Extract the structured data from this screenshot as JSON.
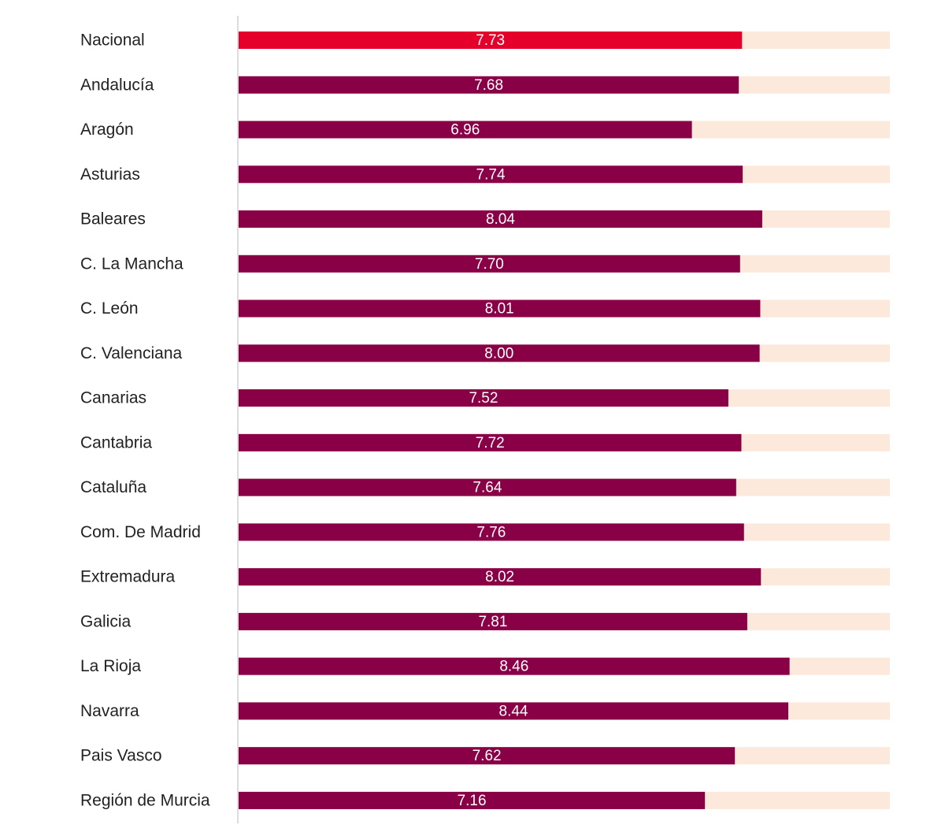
{
  "chart_data": {
    "type": "hbar",
    "categories": [
      "Nacional",
      "Andalucía",
      "Aragón",
      "Asturias",
      "Baleares",
      "C. La Mancha",
      "C. León",
      "C. Valenciana",
      "Canarias",
      "Cantabria",
      "Cataluña",
      "Com. De Madrid",
      "Extremadura",
      "Galicia",
      "La Rioja",
      "Navarra",
      "Pais Vasco",
      "Región de Murcia"
    ],
    "values": [
      7.73,
      7.68,
      6.96,
      7.74,
      8.04,
      7.7,
      8.01,
      8,
      7.52,
      7.72,
      7.64,
      7.76,
      8.02,
      7.81,
      8.46,
      8.44,
      7.62,
      7.16
    ],
    "value_labels": [
      "7.73",
      "7.68",
      "6.96",
      "7.74",
      "8.04",
      "7.70",
      "8.01",
      "8.00",
      "7.52",
      "7.72",
      "7.64",
      "7.76",
      "8.02",
      "7.81",
      "8.46",
      "8.44",
      "7.62",
      "7.16"
    ],
    "colors": [
      "#e4002b",
      "#8a0046",
      "#8a0046",
      "#8a0046",
      "#8a0046",
      "#8a0046",
      "#8a0046",
      "#8a0046",
      "#8a0046",
      "#8a0046",
      "#8a0046",
      "#8a0046",
      "#8a0046",
      "#8a0046",
      "#8a0046",
      "#8a0046",
      "#8a0046",
      "#8a0046"
    ],
    "track_color": "#fde9dc",
    "xlim": [
      0,
      10
    ]
  }
}
